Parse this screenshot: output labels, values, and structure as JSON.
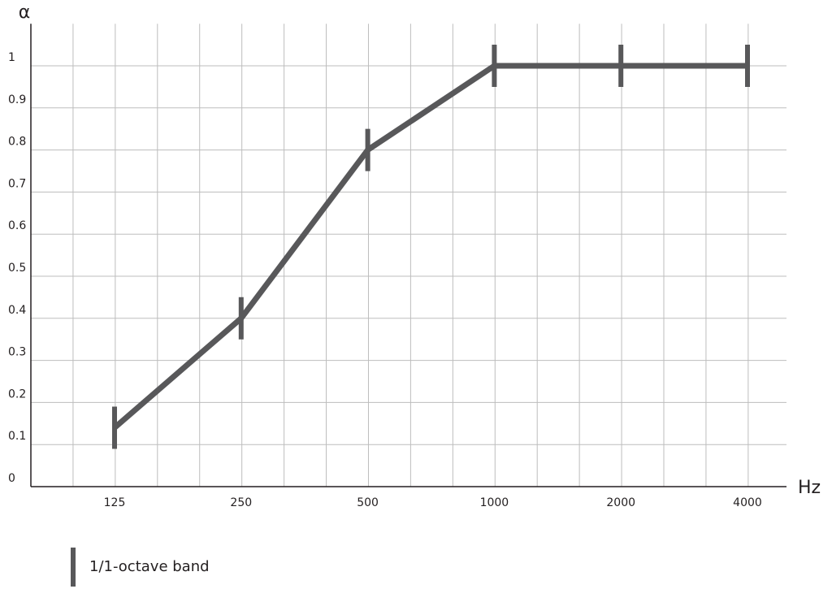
{
  "chart_data": {
    "type": "line",
    "y_label": "α",
    "x_label": "Hz",
    "categories": [
      "125",
      "250",
      "500",
      "1000",
      "2000",
      "4000"
    ],
    "series": [
      {
        "name": "1/1-octave band",
        "color": "#58585a",
        "values": [
          0.14,
          0.4,
          0.8,
          1,
          1,
          1
        ]
      }
    ],
    "ylim": [
      0,
      1.1
    ],
    "yticks": [
      0,
      0.1,
      0.2,
      0.3,
      0.4,
      0.5,
      0.6,
      0.7,
      0.8,
      0.9,
      1
    ],
    "grid": true
  }
}
